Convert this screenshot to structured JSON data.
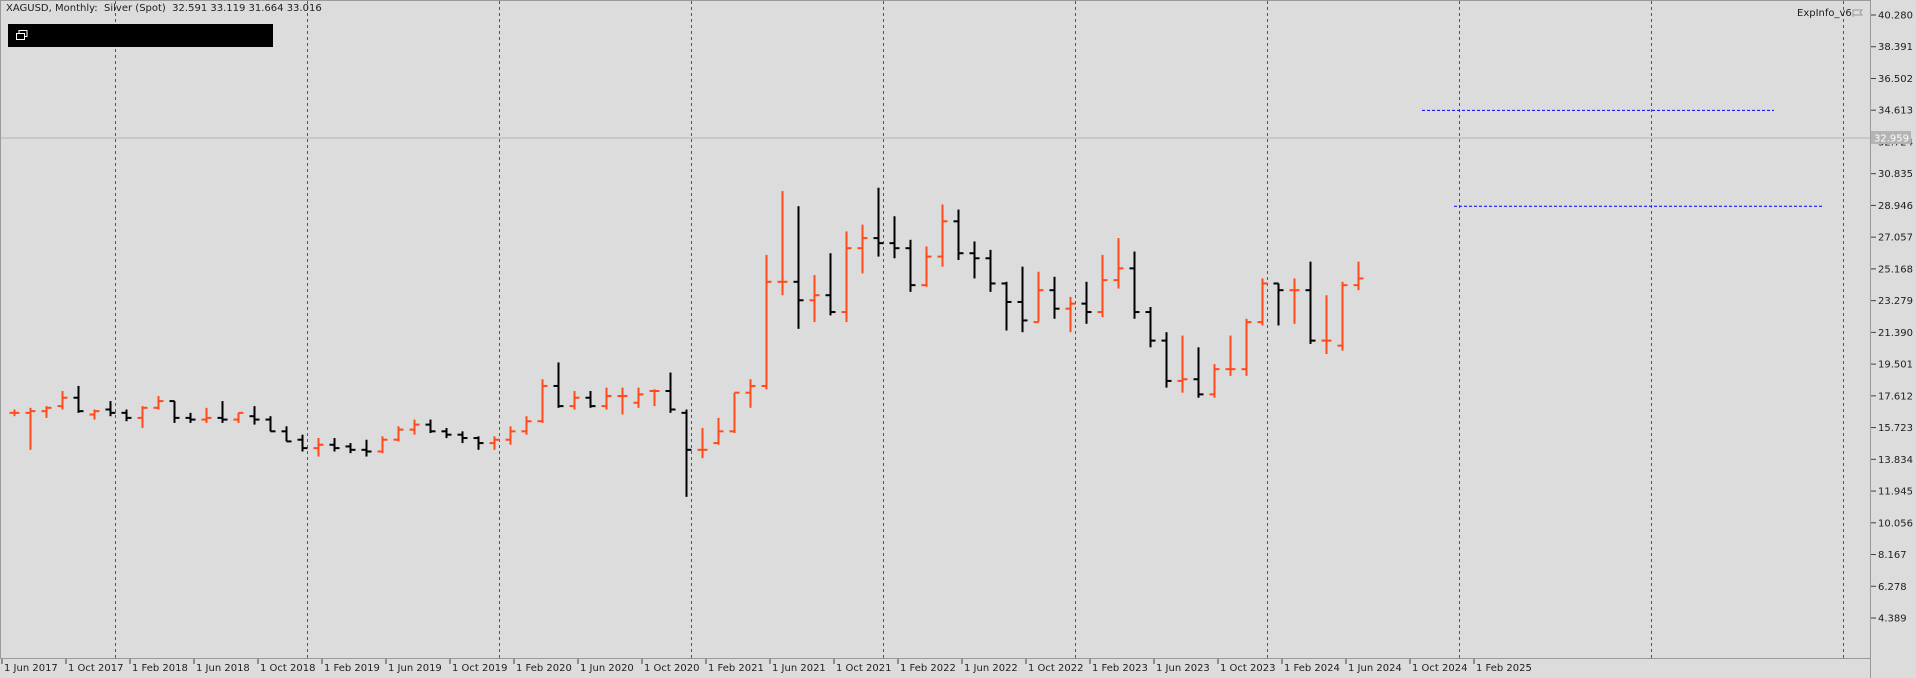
{
  "header": {
    "symbol_line": "XAGUSD, Monthly:  Silver (Spot)  32.591 33.119 31.664 33.016"
  },
  "indicator": {
    "label": "ExpInfo_v6",
    "icon": "flag-icon"
  },
  "colors": {
    "background": "#dcdcdc",
    "bull": "#ff4a1c",
    "bear": "#000000",
    "level_lines": "#0000ff",
    "price_marker": "#b4b4b4"
  },
  "chart_data": {
    "type": "ohlc",
    "timeframe": "Monthly",
    "symbol": "XAGUSD",
    "grid": true,
    "ylim": [
      3.4,
      41.2
    ],
    "y_ticks": [
      "40.280",
      "38.391",
      "36.502",
      "34.613",
      "32.724",
      "30.835",
      "28.946",
      "27.057",
      "25.168",
      "23.279",
      "21.390",
      "19.501",
      "17.612",
      "15.723",
      "13.834",
      "11.945",
      "10.056",
      "8.167",
      "6.278",
      "4.389"
    ],
    "y_tick_values": [
      40.28,
      38.391,
      36.502,
      34.613,
      32.724,
      30.835,
      28.946,
      27.057,
      25.168,
      23.279,
      21.39,
      19.501,
      17.612,
      15.723,
      13.834,
      11.945,
      10.056,
      8.167,
      6.278,
      4.389
    ],
    "x_tick_labels": [
      "1 Jun 2017",
      "1 Oct 2017",
      "1 Feb 2018",
      "1 Jun 2018",
      "1 Oct 2018",
      "1 Feb 2019",
      "1 Jun 2019",
      "1 Oct 2019",
      "1 Feb 2020",
      "1 Jun 2020",
      "1 Oct 2020",
      "1 Feb 2021",
      "1 Jun 2021",
      "1 Oct 2021",
      "1 Feb 2022",
      "1 Jun 2022",
      "1 Oct 2022",
      "1 Feb 2023",
      "1 Jun 2023",
      "1 Oct 2023",
      "1 Feb 2024",
      "1 Jun 2024",
      "1 Oct 2024",
      "1 Feb 2025"
    ],
    "x_tick_bar_index": [
      0,
      4,
      8,
      12,
      16,
      20,
      24,
      28,
      32,
      36,
      40,
      44,
      48,
      52,
      56,
      60,
      64,
      68,
      72,
      76,
      80,
      84,
      88,
      92
    ],
    "current_price_label": "32.959",
    "current_price": 32.96,
    "levels": [
      {
        "price": 34.6,
        "from_bar": 88,
        "to_bar": 110
      },
      {
        "price": 28.9,
        "from_bar": 90,
        "to_bar": 113
      }
    ],
    "bars": [
      {
        "o": 16.6,
        "h": 16.8,
        "l": 16.4,
        "c": 16.6
      },
      {
        "o": 16.6,
        "h": 16.9,
        "l": 14.4,
        "c": 16.7
      },
      {
        "o": 16.7,
        "h": 17.0,
        "l": 16.3,
        "c": 16.9
      },
      {
        "o": 17.0,
        "h": 17.9,
        "l": 16.8,
        "c": 17.5
      },
      {
        "o": 17.5,
        "h": 18.2,
        "l": 16.6,
        "c": 16.7
      },
      {
        "o": 16.5,
        "h": 16.8,
        "l": 16.2,
        "c": 16.7
      },
      {
        "o": 16.8,
        "h": 17.3,
        "l": 16.4,
        "c": 16.6
      },
      {
        "o": 16.6,
        "h": 16.8,
        "l": 16.1,
        "c": 16.3
      },
      {
        "o": 16.3,
        "h": 17.0,
        "l": 15.7,
        "c": 16.9
      },
      {
        "o": 16.9,
        "h": 17.6,
        "l": 16.8,
        "c": 17.3
      },
      {
        "o": 17.3,
        "h": 17.3,
        "l": 16.0,
        "c": 16.3
      },
      {
        "o": 16.3,
        "h": 16.6,
        "l": 16.0,
        "c": 16.2
      },
      {
        "o": 16.2,
        "h": 16.9,
        "l": 16.0,
        "c": 16.3
      },
      {
        "o": 16.3,
        "h": 17.3,
        "l": 16.0,
        "c": 16.2
      },
      {
        "o": 16.2,
        "h": 16.6,
        "l": 16.0,
        "c": 16.6
      },
      {
        "o": 16.4,
        "h": 17.0,
        "l": 15.9,
        "c": 16.2
      },
      {
        "o": 16.2,
        "h": 16.4,
        "l": 15.5,
        "c": 15.5
      },
      {
        "o": 15.5,
        "h": 15.8,
        "l": 14.9,
        "c": 14.9
      },
      {
        "o": 15.0,
        "h": 15.3,
        "l": 14.3,
        "c": 14.5
      },
      {
        "o": 14.5,
        "h": 15.1,
        "l": 14.0,
        "c": 14.7
      },
      {
        "o": 14.7,
        "h": 15.1,
        "l": 14.3,
        "c": 14.5
      },
      {
        "o": 14.6,
        "h": 14.8,
        "l": 14.2,
        "c": 14.4
      },
      {
        "o": 14.4,
        "h": 15.0,
        "l": 14.0,
        "c": 14.3
      },
      {
        "o": 14.3,
        "h": 15.2,
        "l": 14.2,
        "c": 15.0
      },
      {
        "o": 15.0,
        "h": 15.8,
        "l": 14.9,
        "c": 15.6
      },
      {
        "o": 15.6,
        "h": 16.2,
        "l": 15.3,
        "c": 15.9
      },
      {
        "o": 15.9,
        "h": 16.2,
        "l": 15.4,
        "c": 15.5
      },
      {
        "o": 15.5,
        "h": 15.7,
        "l": 15.1,
        "c": 15.3
      },
      {
        "o": 15.3,
        "h": 15.5,
        "l": 14.8,
        "c": 15.1
      },
      {
        "o": 15.1,
        "h": 15.2,
        "l": 14.4,
        "c": 14.8
      },
      {
        "o": 14.8,
        "h": 15.2,
        "l": 14.4,
        "c": 15.0
      },
      {
        "o": 15.0,
        "h": 15.8,
        "l": 14.7,
        "c": 15.5
      },
      {
        "o": 15.5,
        "h": 16.4,
        "l": 15.3,
        "c": 16.1
      },
      {
        "o": 16.1,
        "h": 18.6,
        "l": 16.0,
        "c": 18.2
      },
      {
        "o": 18.2,
        "h": 19.6,
        "l": 16.9,
        "c": 17.0
      },
      {
        "o": 17.0,
        "h": 17.9,
        "l": 16.8,
        "c": 17.5
      },
      {
        "o": 17.5,
        "h": 17.9,
        "l": 16.9,
        "c": 17.0
      },
      {
        "o": 17.0,
        "h": 18.1,
        "l": 16.8,
        "c": 17.6
      },
      {
        "o": 17.6,
        "h": 18.1,
        "l": 16.5,
        "c": 17.6
      },
      {
        "o": 17.2,
        "h": 18.1,
        "l": 16.9,
        "c": 17.7
      },
      {
        "o": 17.9,
        "h": 18.0,
        "l": 17.0,
        "c": 17.9
      },
      {
        "o": 17.9,
        "h": 19.0,
        "l": 16.6,
        "c": 16.8
      },
      {
        "o": 16.6,
        "h": 16.8,
        "l": 11.6,
        "c": 14.4
      },
      {
        "o": 14.4,
        "h": 15.7,
        "l": 13.9,
        "c": 14.4
      },
      {
        "o": 14.8,
        "h": 16.3,
        "l": 14.7,
        "c": 15.5
      },
      {
        "o": 15.5,
        "h": 17.8,
        "l": 15.4,
        "c": 17.8
      },
      {
        "o": 17.8,
        "h": 18.6,
        "l": 16.9,
        "c": 18.2
      },
      {
        "o": 18.2,
        "h": 26.0,
        "l": 18.0,
        "c": 24.4
      },
      {
        "o": 24.4,
        "h": 29.8,
        "l": 23.6,
        "c": 24.4
      },
      {
        "o": 24.4,
        "h": 28.9,
        "l": 21.6,
        "c": 23.3
      },
      {
        "o": 23.3,
        "h": 24.8,
        "l": 22.0,
        "c": 23.6
      },
      {
        "o": 23.6,
        "h": 26.1,
        "l": 22.4,
        "c": 22.6
      },
      {
        "o": 22.6,
        "h": 27.4,
        "l": 22.0,
        "c": 26.4
      },
      {
        "o": 26.4,
        "h": 27.8,
        "l": 24.9,
        "c": 27.0
      },
      {
        "o": 27.0,
        "h": 30.0,
        "l": 25.9,
        "c": 26.7
      },
      {
        "o": 26.7,
        "h": 28.3,
        "l": 25.8,
        "c": 26.4
      },
      {
        "o": 26.4,
        "h": 26.9,
        "l": 23.8,
        "c": 24.2
      },
      {
        "o": 24.2,
        "h": 26.5,
        "l": 24.1,
        "c": 25.9
      },
      {
        "o": 25.9,
        "h": 29.0,
        "l": 25.3,
        "c": 28.0
      },
      {
        "o": 28.0,
        "h": 28.7,
        "l": 25.7,
        "c": 26.1
      },
      {
        "o": 26.1,
        "h": 26.8,
        "l": 24.6,
        "c": 25.8
      },
      {
        "o": 25.8,
        "h": 26.3,
        "l": 23.8,
        "c": 24.3
      },
      {
        "o": 24.3,
        "h": 24.4,
        "l": 21.5,
        "c": 23.2
      },
      {
        "o": 23.2,
        "h": 25.3,
        "l": 21.4,
        "c": 22.1
      },
      {
        "o": 22.0,
        "h": 25.0,
        "l": 22.0,
        "c": 23.9
      },
      {
        "o": 23.9,
        "h": 24.7,
        "l": 22.2,
        "c": 22.8
      },
      {
        "o": 22.8,
        "h": 23.5,
        "l": 21.4,
        "c": 23.1
      },
      {
        "o": 23.1,
        "h": 24.4,
        "l": 21.9,
        "c": 22.6
      },
      {
        "o": 22.6,
        "h": 26.0,
        "l": 22.3,
        "c": 24.5
      },
      {
        "o": 24.5,
        "h": 27.0,
        "l": 24.0,
        "c": 25.2
      },
      {
        "o": 25.2,
        "h": 26.2,
        "l": 22.2,
        "c": 22.6
      },
      {
        "o": 22.6,
        "h": 22.9,
        "l": 20.5,
        "c": 20.9
      },
      {
        "o": 20.9,
        "h": 21.4,
        "l": 18.1,
        "c": 18.5
      },
      {
        "o": 18.5,
        "h": 21.2,
        "l": 17.8,
        "c": 18.6
      },
      {
        "o": 18.6,
        "h": 20.5,
        "l": 17.5,
        "c": 17.7
      },
      {
        "o": 17.7,
        "h": 19.5,
        "l": 17.5,
        "c": 19.2
      },
      {
        "o": 19.2,
        "h": 21.2,
        "l": 18.8,
        "c": 19.2
      },
      {
        "o": 19.2,
        "h": 22.2,
        "l": 18.8,
        "c": 22.0
      },
      {
        "o": 22.0,
        "h": 24.6,
        "l": 21.8,
        "c": 24.3
      },
      {
        "o": 24.3,
        "h": 24.3,
        "l": 21.8,
        "c": 23.9
      },
      {
        "o": 23.9,
        "h": 24.6,
        "l": 21.9,
        "c": 23.9
      },
      {
        "o": 23.9,
        "h": 25.6,
        "l": 20.7,
        "c": 20.9
      },
      {
        "o": 20.9,
        "h": 23.6,
        "l": 20.1,
        "c": 20.9
      },
      {
        "o": 20.6,
        "h": 24.4,
        "l": 20.3,
        "c": 24.2
      },
      {
        "o": 24.2,
        "h": 25.6,
        "l": 23.9,
        "c": 24.6
      }
    ]
  }
}
